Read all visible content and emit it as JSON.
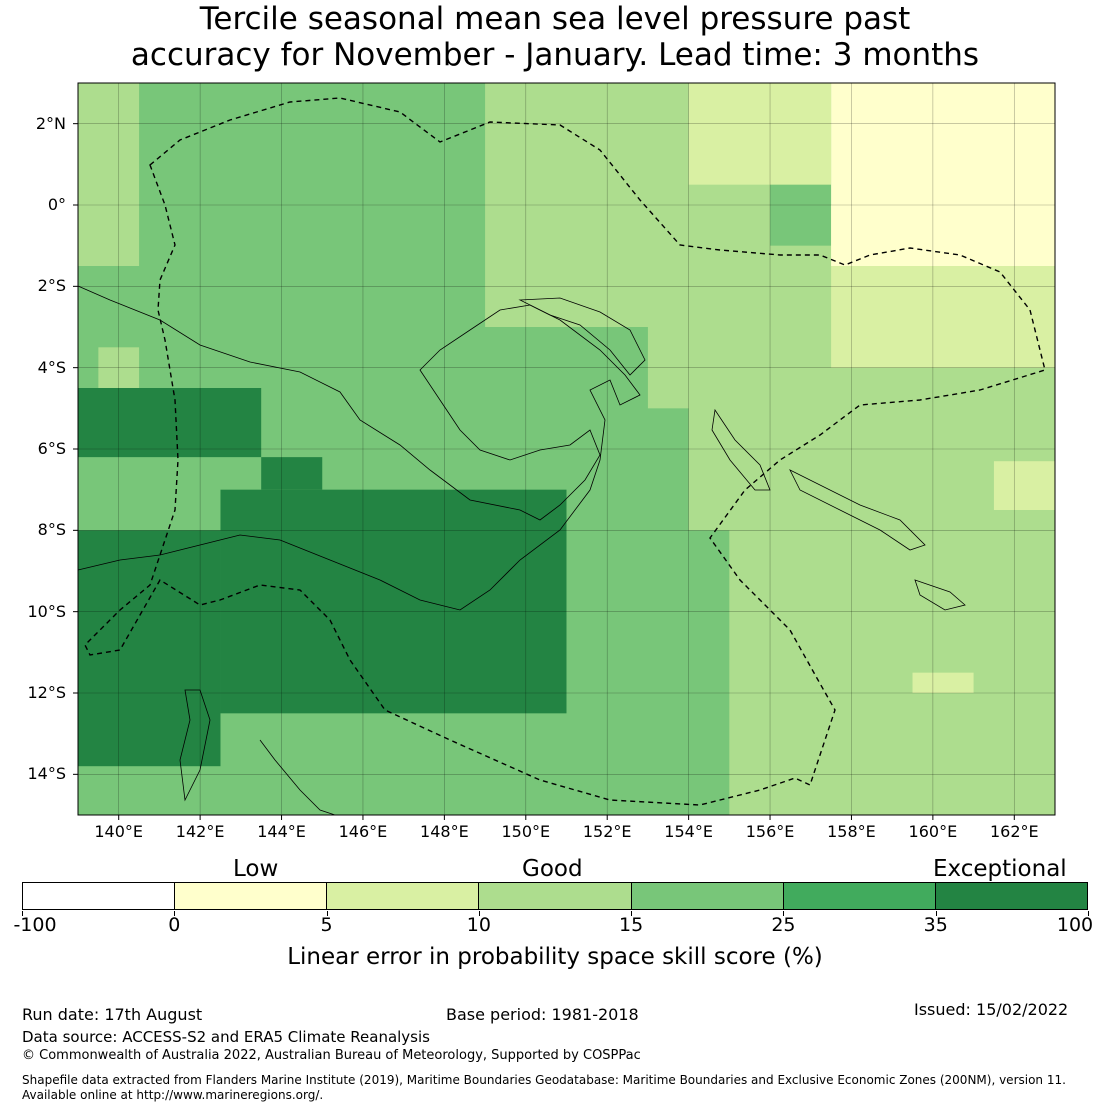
{
  "title_line1": "Tercile seasonal mean sea level pressure past",
  "title_line2": "accuracy for November - January. Lead time: 3 months",
  "map": {
    "lon_range": [
      139,
      163
    ],
    "lat_range": [
      -15,
      3
    ],
    "lat_ticks": [
      {
        "value": 2,
        "label": "2°N"
      },
      {
        "value": 0,
        "label": "0°"
      },
      {
        "value": -2,
        "label": "2°S"
      },
      {
        "value": -4,
        "label": "4°S"
      },
      {
        "value": -6,
        "label": "6°S"
      },
      {
        "value": -8,
        "label": "8°S"
      },
      {
        "value": -10,
        "label": "10°S"
      },
      {
        "value": -12,
        "label": "12°S"
      },
      {
        "value": -14,
        "label": "14°S"
      }
    ],
    "lon_ticks": [
      {
        "value": 140,
        "label": "140°E"
      },
      {
        "value": 142,
        "label": "142°E"
      },
      {
        "value": 144,
        "label": "144°E"
      },
      {
        "value": 146,
        "label": "146°E"
      },
      {
        "value": 148,
        "label": "148°E"
      },
      {
        "value": 150,
        "label": "150°E"
      },
      {
        "value": 152,
        "label": "152°E"
      },
      {
        "value": 154,
        "label": "154°E"
      },
      {
        "value": 156,
        "label": "156°E"
      },
      {
        "value": 158,
        "label": "158°E"
      },
      {
        "value": 160,
        "label": "160°E"
      },
      {
        "value": 162,
        "label": "162°E"
      }
    ],
    "gridlines": true,
    "skill_regions": [
      {
        "category": 6,
        "lon": [
          139,
          142.5
        ],
        "lat": [
          -13.8,
          -8
        ]
      },
      {
        "category": 6,
        "lon": [
          142.5,
          151
        ],
        "lat": [
          -12.5,
          -7
        ]
      },
      {
        "category": 6,
        "lon": [
          143.5,
          145
        ],
        "lat": [
          -7,
          -6.2
        ]
      },
      {
        "category": 6,
        "lon": [
          139,
          143.5
        ],
        "lat": [
          -6.2,
          -4.5
        ]
      },
      {
        "category": 3,
        "lon": [
          155,
          163
        ],
        "lat": [
          -15,
          -8
        ]
      },
      {
        "category": 3,
        "lon": [
          154,
          163
        ],
        "lat": [
          -8,
          -1
        ]
      },
      {
        "category": 3,
        "lon": [
          149,
          156
        ],
        "lat": [
          -3,
          3
        ]
      },
      {
        "category": 3,
        "lon": [
          153,
          155
        ],
        "lat": [
          -5,
          -3
        ]
      },
      {
        "category": 2,
        "lon": [
          157.5,
          163
        ],
        "lat": [
          -4,
          0
        ]
      },
      {
        "category": 2,
        "lon": [
          154,
          157.5
        ],
        "lat": [
          0.5,
          3
        ]
      },
      {
        "category": 2,
        "lon": [
          159.5,
          161
        ],
        "lat": [
          -12,
          -11.5
        ]
      },
      {
        "category": 2,
        "lon": [
          161.5,
          163
        ],
        "lat": [
          -7.5,
          -6.3
        ]
      },
      {
        "category": 1,
        "lon": [
          157.5,
          163
        ],
        "lat": [
          -1.5,
          3
        ]
      },
      {
        "category": 3,
        "lon": [
          139,
          140.5
        ],
        "lat": [
          -1.5,
          3
        ]
      },
      {
        "category": 3,
        "lon": [
          139.5,
          140.5
        ],
        "lat": [
          -4.5,
          -3.5
        ]
      }
    ],
    "base_category": 4
  },
  "colorbar": {
    "categories": [
      {
        "from": -100,
        "to": 0,
        "color": "#ffffff"
      },
      {
        "from": 0,
        "to": 5,
        "color": "#ffffcc"
      },
      {
        "from": 5,
        "to": 10,
        "color": "#d9f0a3"
      },
      {
        "from": 10,
        "to": 15,
        "color": "#addd8e"
      },
      {
        "from": 15,
        "to": 25,
        "color": "#78c679"
      },
      {
        "from": 25,
        "to": 35,
        "color": "#41ab5d"
      },
      {
        "from": 35,
        "to": 100,
        "color": "#238443"
      }
    ],
    "tick_labels": [
      "-100",
      "0",
      "5",
      "10",
      "15",
      "25",
      "35",
      "100"
    ],
    "label_low": "Low",
    "label_good": "Good",
    "label_exceptional": "Exceptional",
    "title": "Linear error in probability space skill score (%)"
  },
  "footer": {
    "run_date": "Run date: 17th August",
    "base_period": "Base period: 1981-2018",
    "issued": "Issued: 15/02/2022",
    "data_source": "Data source: ACCESS-S2 and ERA5 Climate Reanalysis",
    "copyright": "© Commonwealth of Australia 2022, Australian Bureau of Meteorology, Supported by COSPPac",
    "shapefile_line1": "Shapefile data extracted from Flanders Marine Institute (2019), Maritime Boundaries Geodatabase: Maritime Boundaries and Exclusive Economic Zones (200NM), version 11.",
    "shapefile_line2": "Available online at http://www.marineregions.org/."
  }
}
